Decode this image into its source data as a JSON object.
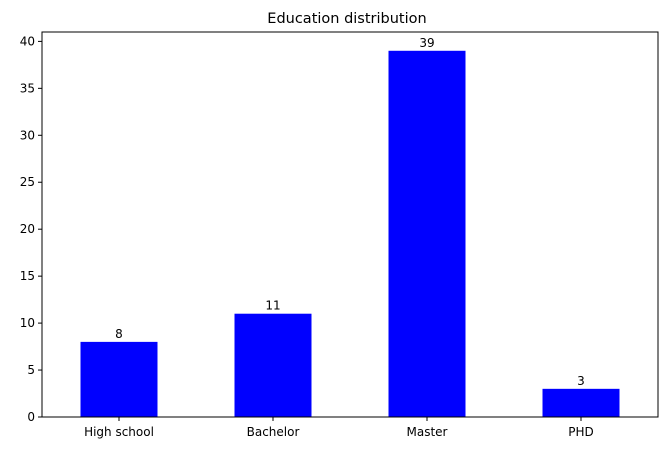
{
  "chart_data": {
    "type": "bar",
    "title": "Education distribution",
    "xlabel": "",
    "ylabel": "",
    "categories": [
      "High school",
      "Bachelor",
      "Master",
      "PHD"
    ],
    "values": [
      8,
      11,
      39,
      3
    ],
    "data_labels": [
      "8",
      "11",
      "39",
      "3"
    ],
    "ylim": [
      0,
      41
    ],
    "yticks": [
      0,
      5,
      10,
      15,
      20,
      25,
      30,
      35,
      40
    ],
    "bar_color": "#0000ff",
    "grid": false,
    "legend": "none"
  }
}
